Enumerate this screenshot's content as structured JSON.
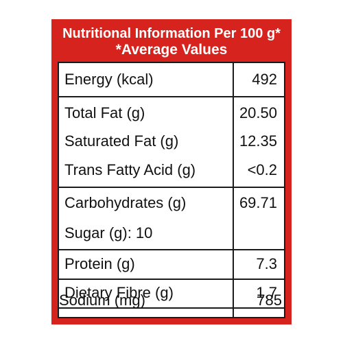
{
  "header": {
    "line1": "Nutritional Information Per 100 g*",
    "line2": "*Average Values"
  },
  "rows": {
    "energy": {
      "label": "Energy (kcal)",
      "value": "492"
    },
    "total_fat": {
      "label": "Total Fat (g)",
      "value": "20.50"
    },
    "saturated_fat": {
      "label": "Saturated Fat (g)",
      "value": "12.35"
    },
    "trans_fat": {
      "label": "Trans Fatty Acid (g)",
      "value": "<0.2"
    },
    "carbohydrates": {
      "label": "Carbohydrates (g)",
      "value": "69.71"
    },
    "sugar": {
      "label": "Sugar (g):",
      "value": "10"
    },
    "protein": {
      "label": "Protein (g)",
      "value": "7.3"
    },
    "dietary_fibre": {
      "label": "Dietary Fibre (g)",
      "value": "1.7"
    },
    "sodium": {
      "label": "Sodium (mg)",
      "value": "785"
    }
  },
  "colors": {
    "header_background": "#d6231e",
    "header_text": "#ffffff",
    "grid_lines": "#1a1a1a"
  }
}
